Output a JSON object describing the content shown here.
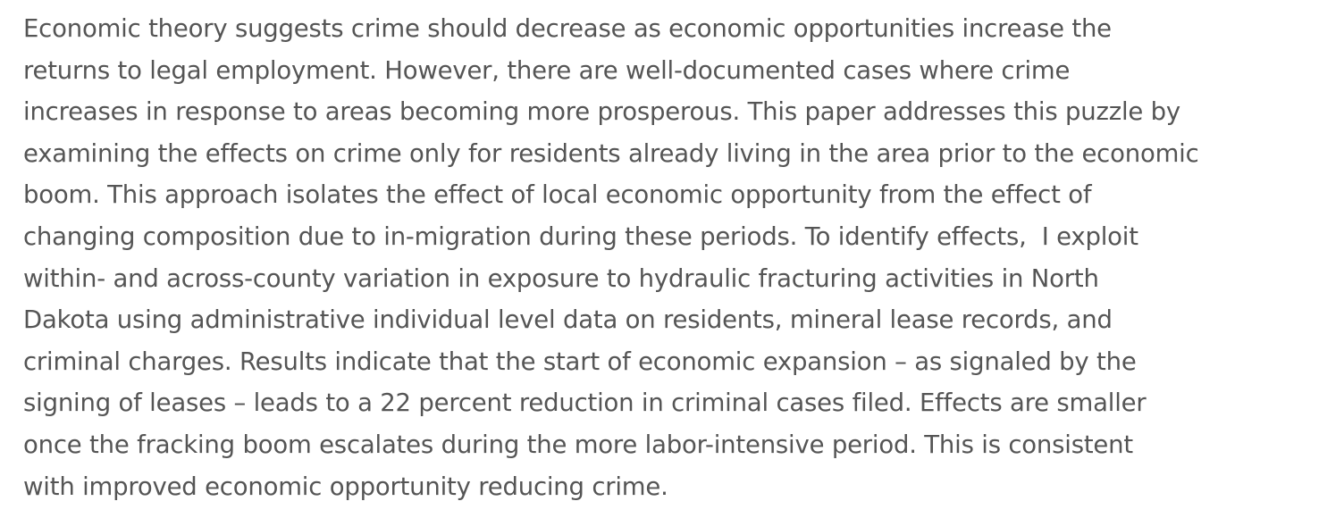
{
  "abstract": {
    "lines": [
      "Economic theory suggests crime should decrease as economic opportunities increase the",
      "returns to legal employment. However, there are well-documented cases where crime",
      "increases in response to areas becoming more prosperous. This paper addresses this puzzle by",
      "examining the effects on crime only for residents already living in the area prior to the economic",
      "boom. This approach isolates the effect of local economic opportunity from the effect of",
      "changing composition due to in-migration during these periods. To identify effects,  I exploit",
      "within- and across-county variation in exposure to hydraulic fracturing activities in North",
      "Dakota using administrative individual level data on residents, mineral lease records, and",
      "criminal charges. Results indicate that the start of economic expansion – as signaled by the",
      "signing of leases – leads to a 22 percent reduction in criminal cases filed. Effects are smaller",
      "once the fracking boom escalates during the more labor-intensive period. This is consistent",
      "with improved economic opportunity reducing crime."
    ]
  }
}
